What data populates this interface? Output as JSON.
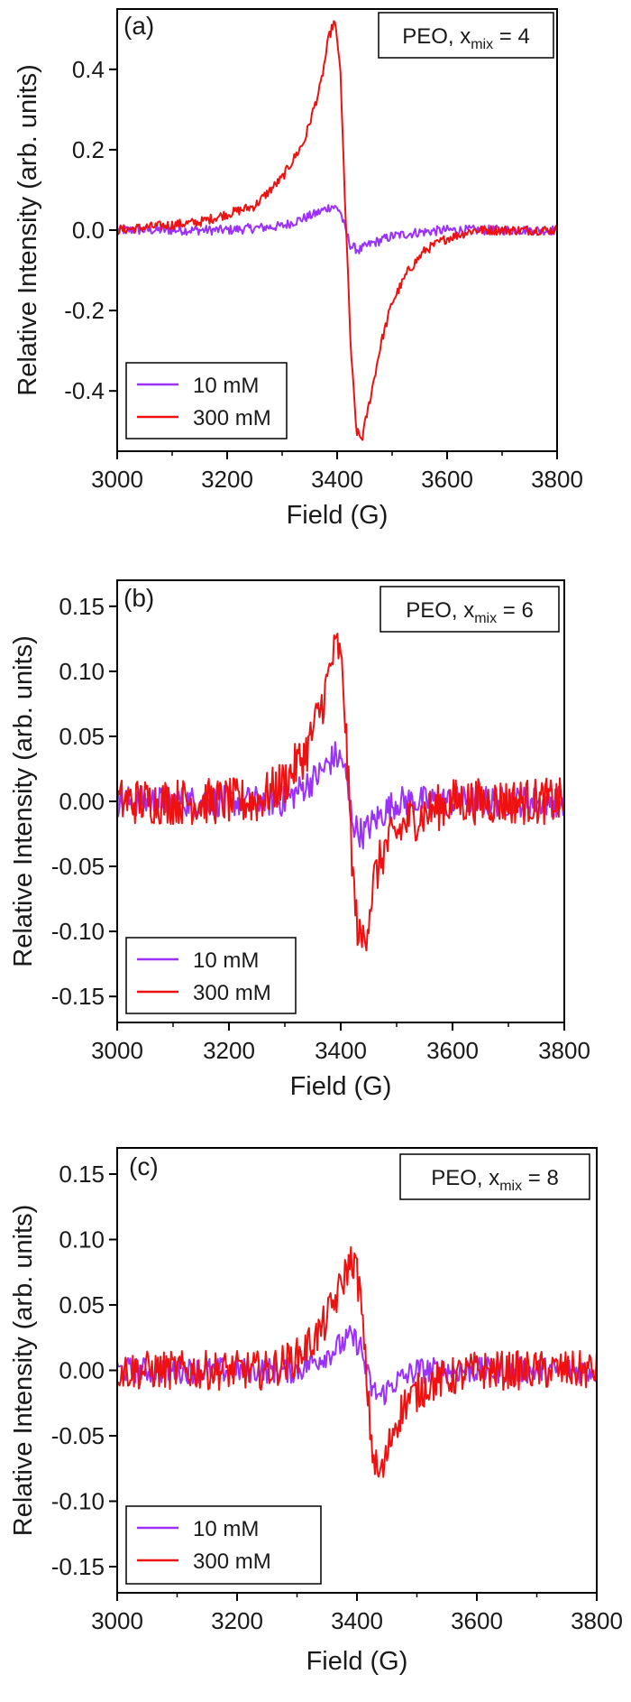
{
  "chart_data": [
    {
      "type": "line",
      "panel_label": "(a)",
      "annotation": {
        "prefix": "PEO, x",
        "subscript": "mix",
        "suffix": " = 4"
      },
      "xlabel": "Field (G)",
      "ylabel": "Relative Intensity (arb. units)",
      "xlim": [
        3000,
        3800
      ],
      "ylim": [
        -0.55,
        0.55
      ],
      "xticks": [
        3000,
        3200,
        3400,
        3600,
        3800
      ],
      "yticks": [
        -0.4,
        -0.2,
        0.0,
        0.2,
        0.4
      ],
      "xtick_labels": [
        "3000",
        "3200",
        "3400",
        "3600",
        "3800"
      ],
      "ytick_labels": [
        "-0.4",
        "-0.2",
        "0.0",
        "0.2",
        "0.4"
      ],
      "legend_position": "bottom-left",
      "series": [
        {
          "name": "10 mM",
          "color": "#9b30ff",
          "noise": 0.012,
          "x": [
            3000,
            3200,
            3300,
            3360,
            3390,
            3405,
            3415,
            3425,
            3440,
            3460,
            3500,
            3550,
            3600,
            3800
          ],
          "y": [
            0.0,
            0.0,
            0.01,
            0.04,
            0.06,
            0.05,
            0.0,
            -0.04,
            -0.05,
            -0.035,
            -0.015,
            -0.005,
            0.0,
            0.0
          ]
        },
        {
          "name": "300 mM",
          "color": "#ee1111",
          "noise": 0.012,
          "x": [
            3000,
            3150,
            3250,
            3300,
            3340,
            3370,
            3385,
            3395,
            3405,
            3415,
            3425,
            3435,
            3445,
            3460,
            3480,
            3500,
            3530,
            3560,
            3600,
            3650,
            3700,
            3800
          ],
          "y": [
            0.0,
            0.02,
            0.06,
            0.13,
            0.22,
            0.36,
            0.48,
            0.52,
            0.42,
            0.05,
            -0.3,
            -0.5,
            -0.52,
            -0.42,
            -0.28,
            -0.18,
            -0.1,
            -0.05,
            -0.02,
            0.0,
            0.0,
            0.0
          ]
        }
      ]
    },
    {
      "type": "line",
      "panel_label": "(b)",
      "annotation": {
        "prefix": "PEO, x",
        "subscript": "mix",
        "suffix": " = 6"
      },
      "xlabel": "Field (G)",
      "ylabel": "Relative Intensity (arb. units)",
      "xlim": [
        3000,
        3800
      ],
      "ylim": [
        -0.17,
        0.17
      ],
      "xticks": [
        3000,
        3200,
        3400,
        3600,
        3800
      ],
      "yticks": [
        -0.15,
        -0.1,
        -0.05,
        0.0,
        0.05,
        0.1,
        0.15
      ],
      "xtick_labels": [
        "3000",
        "3200",
        "3400",
        "3600",
        "3800"
      ],
      "ytick_labels": [
        "-0.15",
        "-0.10",
        "-0.05",
        "0.00",
        "0.05",
        "0.10",
        "0.15"
      ],
      "legend_position": "bottom-left",
      "series": [
        {
          "name": "10 mM",
          "color": "#9b30ff",
          "noise": 0.012,
          "x": [
            3000,
            3300,
            3360,
            3390,
            3405,
            3415,
            3425,
            3440,
            3460,
            3500,
            3800
          ],
          "y": [
            0.0,
            0.0,
            0.02,
            0.035,
            0.03,
            0.0,
            -0.02,
            -0.025,
            -0.015,
            0.0,
            0.0
          ]
        },
        {
          "name": "300 mM",
          "color": "#ee1111",
          "noise": 0.018,
          "x": [
            3000,
            3250,
            3300,
            3340,
            3370,
            3385,
            3395,
            3405,
            3415,
            3425,
            3435,
            3445,
            3460,
            3480,
            3520,
            3600,
            3800
          ],
          "y": [
            0.0,
            0.0,
            0.015,
            0.04,
            0.08,
            0.11,
            0.12,
            0.09,
            0.0,
            -0.08,
            -0.11,
            -0.1,
            -0.06,
            -0.035,
            -0.015,
            0.0,
            0.0
          ]
        }
      ]
    },
    {
      "type": "line",
      "panel_label": "(c)",
      "annotation": {
        "prefix": "PEO, x",
        "subscript": "mix",
        "suffix": " = 8"
      },
      "xlabel": "Field (G)",
      "ylabel": "Relative Intensity (arb. units)",
      "xlim": [
        3000,
        3800
      ],
      "ylim": [
        -0.17,
        0.17
      ],
      "xticks": [
        3000,
        3200,
        3400,
        3600,
        3800
      ],
      "yticks": [
        -0.15,
        -0.1,
        -0.05,
        0.0,
        0.05,
        0.1,
        0.15
      ],
      "xtick_labels": [
        "3000",
        "3200",
        "3400",
        "3600",
        "3800"
      ],
      "ytick_labels": [
        "-0.15",
        "-0.10",
        "-0.05",
        "0.00",
        "0.05",
        "0.10",
        "0.15"
      ],
      "legend_position": "bottom-left",
      "series": [
        {
          "name": "10 mM",
          "color": "#9b30ff",
          "noise": 0.01,
          "x": [
            3000,
            3300,
            3360,
            3390,
            3405,
            3415,
            3425,
            3440,
            3460,
            3500,
            3800
          ],
          "y": [
            0.0,
            0.0,
            0.015,
            0.025,
            0.02,
            0.0,
            -0.015,
            -0.02,
            -0.01,
            0.0,
            0.0
          ]
        },
        {
          "name": "300 mM",
          "color": "#ee1111",
          "noise": 0.015,
          "x": [
            3000,
            3250,
            3300,
            3340,
            3370,
            3385,
            3395,
            3405,
            3415,
            3425,
            3435,
            3445,
            3460,
            3480,
            3520,
            3600,
            3800
          ],
          "y": [
            0.0,
            0.0,
            0.01,
            0.03,
            0.06,
            0.08,
            0.085,
            0.06,
            0.0,
            -0.06,
            -0.08,
            -0.075,
            -0.045,
            -0.025,
            -0.01,
            0.0,
            0.0
          ]
        }
      ]
    }
  ]
}
